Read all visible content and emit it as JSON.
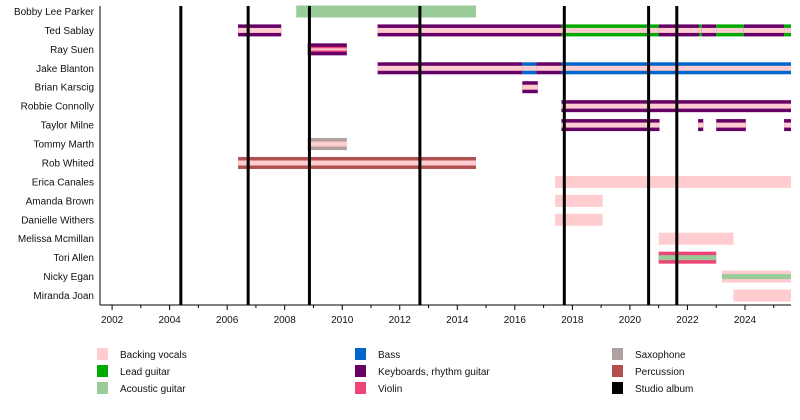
{
  "chart_data": {
    "type": "timeline",
    "xlim": [
      2001.58,
      2025.6
    ],
    "x_ticks": [
      2002,
      2004,
      2006,
      2008,
      2010,
      2012,
      2014,
      2016,
      2018,
      2020,
      2022,
      2024
    ],
    "colors": {
      "Backing vocals": "#ffccd0",
      "Lead guitar": "#00aa00",
      "Acoustic guitar": "#99cc99",
      "Bass": "#0066cc",
      "Keyboards, rhythm guitar": "#660066",
      "Violin": "#ee4477",
      "Saxophone": "#b0a0a0",
      "Percussion": "#b05050",
      "Studio album": "#000000"
    },
    "legend": [
      "Backing vocals",
      "Lead guitar",
      "Acoustic guitar",
      "Bass",
      "Keyboards, rhythm guitar",
      "Violin",
      "Saxophone",
      "Percussion",
      "Studio album"
    ],
    "studio_albums": [
      2004.39,
      2006.73,
      2008.86,
      2012.7,
      2017.72,
      2020.65,
      2021.63
    ],
    "members": [
      {
        "name": "Bobby Lee Parker",
        "spans": [
          {
            "start": 2008.4,
            "end": 2014.65,
            "role": "Acoustic guitar"
          }
        ]
      },
      {
        "name": "Ted Sablay",
        "spans": [
          {
            "start": 2006.38,
            "end": 2007.88,
            "role": "Keyboards, rhythm guitar",
            "inner": "Backing vocals"
          },
          {
            "start": 2011.23,
            "end": 2017.62,
            "role": "Keyboards, rhythm guitar",
            "inner": "Backing vocals"
          },
          {
            "start": 2017.62,
            "end": 2021.0,
            "role": "Lead guitar",
            "inner": "Backing vocals"
          },
          {
            "start": 2021.0,
            "end": 2022.4,
            "role": "Keyboards, rhythm guitar",
            "inner": "Backing vocals"
          },
          {
            "start": 2022.4,
            "end": 2022.5,
            "role": "Lead guitar",
            "inner": "Backing vocals"
          },
          {
            "start": 2022.5,
            "end": 2023.0,
            "role": "Keyboards, rhythm guitar",
            "inner": "Backing vocals"
          },
          {
            "start": 2023.0,
            "end": 2023.96,
            "role": "Lead guitar",
            "inner": "Backing vocals"
          },
          {
            "start": 2023.96,
            "end": 2025.36,
            "role": "Keyboards, rhythm guitar",
            "inner": "Backing vocals"
          },
          {
            "start": 2025.36,
            "end": 2025.6,
            "role": "Lead guitar",
            "inner": "Backing vocals"
          }
        ]
      },
      {
        "name": "Ray Suen",
        "spans": [
          {
            "start": 2008.8,
            "end": 2010.16,
            "role": "Keyboards, rhythm guitar",
            "inner": "Violin",
            "center": "Backing vocals"
          }
        ]
      },
      {
        "name": "Jake Blanton",
        "spans": [
          {
            "start": 2011.23,
            "end": 2016.26,
            "role": "Keyboards, rhythm guitar",
            "inner": "Backing vocals"
          },
          {
            "start": 2016.26,
            "end": 2016.75,
            "role": "Bass",
            "inner": "Backing vocals"
          },
          {
            "start": 2016.75,
            "end": 2017.62,
            "role": "Keyboards, rhythm guitar",
            "inner": "Backing vocals"
          },
          {
            "start": 2017.62,
            "end": 2025.6,
            "role": "Bass",
            "inner": "Backing vocals"
          }
        ]
      },
      {
        "name": "Brian Karscig",
        "spans": [
          {
            "start": 2016.26,
            "end": 2016.8,
            "role": "Keyboards, rhythm guitar",
            "inner": "Backing vocals"
          }
        ]
      },
      {
        "name": "Robbie Connolly",
        "spans": [
          {
            "start": 2017.62,
            "end": 2025.6,
            "role": "Keyboards, rhythm guitar",
            "inner": "Backing vocals"
          }
        ]
      },
      {
        "name": "Taylor Milne",
        "spans": [
          {
            "start": 2017.62,
            "end": 2021.03,
            "role": "Keyboards, rhythm guitar",
            "inner": "Backing vocals"
          },
          {
            "start": 2022.37,
            "end": 2022.55,
            "role": "Keyboards, rhythm guitar",
            "inner": "Backing vocals"
          },
          {
            "start": 2023.0,
            "end": 2024.03,
            "role": "Keyboards, rhythm guitar",
            "inner": "Backing vocals"
          },
          {
            "start": 2025.36,
            "end": 2025.6,
            "role": "Keyboards, rhythm guitar",
            "inner": "Backing vocals"
          }
        ]
      },
      {
        "name": "Tommy Marth",
        "spans": [
          {
            "start": 2008.8,
            "end": 2010.16,
            "role": "Saxophone",
            "inner": "Backing vocals"
          }
        ]
      },
      {
        "name": "Rob Whited",
        "spans": [
          {
            "start": 2006.38,
            "end": 2014.65,
            "role": "Percussion",
            "inner": "Backing vocals"
          }
        ]
      },
      {
        "name": "Erica Canales",
        "spans": [
          {
            "start": 2017.4,
            "end": 2025.6,
            "role": "Backing vocals"
          }
        ]
      },
      {
        "name": "Amanda Brown",
        "spans": [
          {
            "start": 2017.4,
            "end": 2019.05,
            "role": "Backing vocals"
          }
        ]
      },
      {
        "name": "Danielle Withers",
        "spans": [
          {
            "start": 2017.4,
            "end": 2019.05,
            "role": "Backing vocals"
          }
        ]
      },
      {
        "name": "Melissa Mcmillan",
        "spans": [
          {
            "start": 2021.0,
            "end": 2023.6,
            "role": "Backing vocals"
          }
        ]
      },
      {
        "name": "Tori Allen",
        "spans": [
          {
            "start": 2021.0,
            "end": 2023.0,
            "role": "Violin",
            "inner": "Acoustic guitar"
          }
        ]
      },
      {
        "name": "Nicky Egan",
        "spans": [
          {
            "start": 2023.2,
            "end": 2025.6,
            "role": "Backing vocals",
            "inner": "Acoustic guitar"
          }
        ]
      },
      {
        "name": "Miranda Joan",
        "spans": [
          {
            "start": 2023.6,
            "end": 2025.6,
            "role": "Backing vocals"
          }
        ]
      }
    ]
  }
}
